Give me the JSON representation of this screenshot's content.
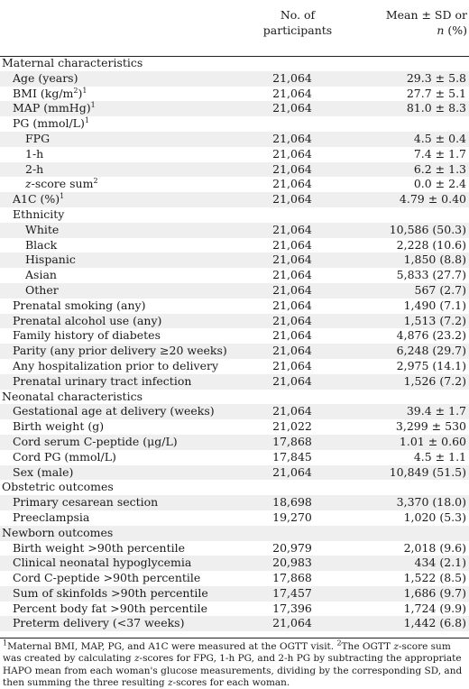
{
  "header": {
    "col_count": "No. of participants",
    "col_mean_line1": "Mean ± SD or",
    "col_mean_line2_italic": "n",
    "col_mean_line2_rest": " (%)"
  },
  "rows": [
    {
      "type": "section",
      "label": "Maternal characteristics"
    },
    {
      "level": 1,
      "label": "Age (years)",
      "n": "21,064",
      "v": "29.3 ± 5.8"
    },
    {
      "level": 1,
      "label": "BMI (kg/m",
      "sup2": "2",
      "label_after": ")",
      "sup": "1",
      "n": "21,064",
      "v": "27.7 ± 5.1"
    },
    {
      "level": 1,
      "label": "MAP (mmHg)",
      "sup": "1",
      "n": "21,064",
      "v": "81.0 ± 8.3"
    },
    {
      "level": 1,
      "label": "PG (mmol/L)",
      "sup": "1"
    },
    {
      "level": 2,
      "label": "FPG",
      "n": "21,064",
      "v": "4.5 ± 0.4"
    },
    {
      "level": 2,
      "label": "1-h",
      "n": "21,064",
      "v": "7.4 ± 1.7"
    },
    {
      "level": 2,
      "label": "2-h",
      "n": "21,064",
      "v": "6.2 ± 1.3"
    },
    {
      "level": 2,
      "label_italic": "z",
      "label": "-score sum",
      "sup": "2",
      "n": "21,064",
      "v": "0.0 ± 2.4"
    },
    {
      "level": 1,
      "label": "A1C (%)",
      "sup": "1",
      "n": "21,064",
      "v": "4.79 ± 0.40"
    },
    {
      "level": 1,
      "label": "Ethnicity"
    },
    {
      "level": 2,
      "label": "White",
      "n": "21,064",
      "v": "10,586 (50.3)"
    },
    {
      "level": 2,
      "label": "Black",
      "n": "21,064",
      "v": "2,228 (10.6)"
    },
    {
      "level": 2,
      "label": "Hispanic",
      "n": "21,064",
      "v": "1,850 (8.8)"
    },
    {
      "level": 2,
      "label": "Asian",
      "n": "21,064",
      "v": "5,833 (27.7)"
    },
    {
      "level": 2,
      "label": "Other",
      "n": "21,064",
      "v": "567 (2.7)"
    },
    {
      "level": 1,
      "label": "Prenatal smoking (any)",
      "n": "21,064",
      "v": "1,490 (7.1)"
    },
    {
      "level": 1,
      "label": "Prenatal alcohol use (any)",
      "n": "21,064",
      "v": "1,513 (7.2)"
    },
    {
      "level": 1,
      "label": "Family history of diabetes",
      "n": "21,064",
      "v": "4,876 (23.2)"
    },
    {
      "level": 1,
      "label": "Parity (any prior delivery ≥20 weeks)",
      "n": "21,064",
      "v": "6,248 (29.7)"
    },
    {
      "level": 1,
      "label": "Any hospitalization prior to delivery",
      "n": "21,064",
      "v": "2,975 (14.1)"
    },
    {
      "level": 1,
      "label": "Prenatal urinary tract infection",
      "n": "21,064",
      "v": "1,526 (7.2)"
    },
    {
      "type": "section",
      "label": "Neonatal characteristics"
    },
    {
      "level": 1,
      "label": "Gestational age at delivery (weeks)",
      "n": "21,064",
      "v": "39.4 ± 1.7"
    },
    {
      "level": 1,
      "label": "Birth weight (g)",
      "n": "21,022",
      "v": "3,299 ± 530"
    },
    {
      "level": 1,
      "label": "Cord serum C-peptide (μg/L)",
      "n": "17,868",
      "v": "1.01 ± 0.60"
    },
    {
      "level": 1,
      "label": "Cord PG (mmol/L)",
      "n": "17,845",
      "v": "4.5 ± 1.1"
    },
    {
      "level": 1,
      "label": "Sex (male)",
      "n": "21,064",
      "v": "10,849 (51.5)"
    },
    {
      "type": "section",
      "label": "Obstetric outcomes"
    },
    {
      "level": 1,
      "label": "Primary cesarean section",
      "n": "18,698",
      "v": "3,370 (18.0)"
    },
    {
      "level": 1,
      "label": "Preeclampsia",
      "n": "19,270",
      "v": "1,020 (5.3)"
    },
    {
      "type": "section",
      "label": "Newborn outcomes"
    },
    {
      "level": 1,
      "label": "Birth weight >90th percentile",
      "n": "20,979",
      "v": "2,018 (9.6)"
    },
    {
      "level": 1,
      "label": "Clinical neonatal hypoglycemia",
      "n": "20,983",
      "v": "434 (2.1)"
    },
    {
      "level": 1,
      "label": "Cord C-peptide >90th percentile",
      "n": "17,868",
      "v": "1,522 (8.5)"
    },
    {
      "level": 1,
      "label": "Sum of skinfolds >90th percentile",
      "n": "17,457",
      "v": "1,686 (9.7)"
    },
    {
      "level": 1,
      "label": "Percent body fat >90th percentile",
      "n": "17,396",
      "v": "1,724 (9.9)"
    },
    {
      "level": 1,
      "label": "Preterm delivery (<37 weeks)",
      "n": "21,064",
      "v": "1,442 (6.8)"
    }
  ],
  "footnote": {
    "fn1_marker": "1",
    "fn1_text": "Maternal BMI, MAP, PG, and A1C were measured at the OGTT visit. ",
    "fn2_marker": "2",
    "fn2_text_a": "The OGTT ",
    "fn2_z1": "z",
    "fn2_text_b": "-score sum was created by calculating ",
    "fn2_z2": "z",
    "fn2_text_c": "-scores for FPG, 1-h PG, and 2-h PG by subtracting the appropriate HAPO mean from each woman's glucose measurements, dividing by the corresponding SD, and then summing the three resulting ",
    "fn2_z3": "z",
    "fn2_text_d": "-scores for each woman."
  }
}
